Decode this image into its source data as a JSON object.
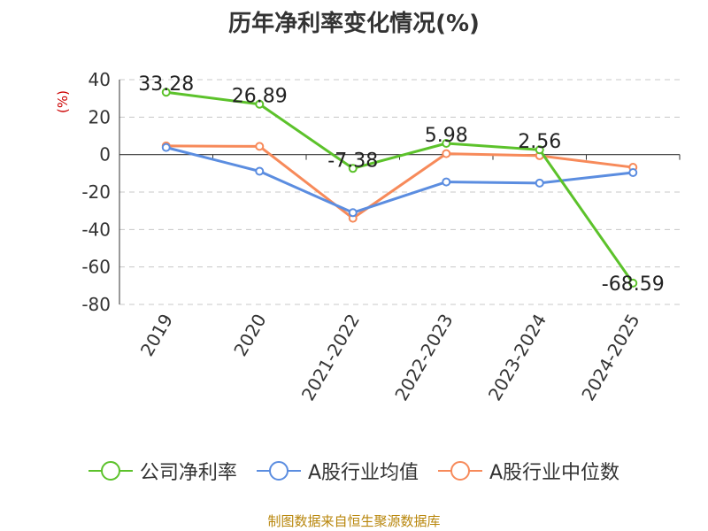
{
  "chart_data": {
    "type": "line",
    "title": "历年净利率变化情况(%)",
    "ylabel": "(%)",
    "categories": [
      "2019",
      "2020",
      "2021-2022",
      "2022-2023",
      "2023-2024",
      "2024-2025"
    ],
    "ylim": [
      -80,
      40
    ],
    "yticks": [
      40,
      20,
      0,
      -20,
      -40,
      -60,
      -80
    ],
    "grid": true,
    "legend_position": "bottom",
    "series": [
      {
        "name": "公司净利率",
        "values": [
          33.28,
          26.89,
          -7.38,
          5.98,
          2.56,
          -68.59
        ],
        "color": "#5cc22b",
        "labels": [
          "33.28",
          "26.89",
          "-7.38",
          "5.98",
          "2.56",
          "-68.59"
        ]
      },
      {
        "name": "A股行业均值",
        "values": [
          3.8,
          -8.9,
          -31.0,
          -14.6,
          -15.2,
          -9.6
        ],
        "color": "#5b8de0"
      },
      {
        "name": "A股行业中位数",
        "values": [
          4.6,
          4.4,
          -34.0,
          0.5,
          -0.6,
          -6.8
        ],
        "color": "#f78a5a"
      }
    ]
  },
  "source": "制图数据来自恒生聚源数据库"
}
